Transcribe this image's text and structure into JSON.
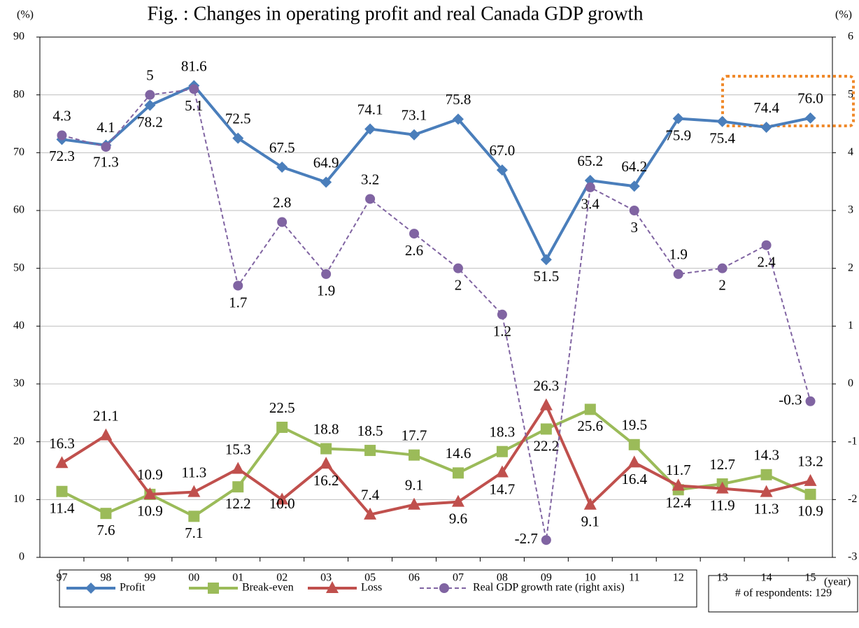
{
  "chart_data": {
    "type": "line",
    "title": "Fig. : Changes in operating profit and real Canada GDP growth",
    "y_label": "(%)",
    "y2_label": "(%)",
    "x_label": "(year)",
    "annotation": "# of respondents: 129",
    "categories": [
      "97",
      "98",
      "99",
      "00",
      "01",
      "02",
      "03",
      "05",
      "06",
      "07",
      "08",
      "09",
      "10",
      "11",
      "12",
      "13",
      "14",
      "15"
    ],
    "series": [
      {
        "name": "Profit",
        "color": "#4a7ebb",
        "marker": "diamond",
        "values": [
          72.3,
          71.3,
          78.2,
          81.6,
          72.5,
          67.5,
          64.9,
          74.1,
          73.1,
          75.8,
          67.0,
          51.5,
          65.2,
          64.2,
          75.9,
          75.4,
          74.4,
          76.0
        ],
        "value_labels": [
          "72.3",
          "71.3",
          "78.2",
          "81.6",
          "72.5",
          "67.5",
          "64.9",
          "74.1",
          "73.1",
          "75.8",
          "67.0",
          "51.5",
          "65.2",
          "64.2",
          "75.9",
          "75.4",
          "74.4",
          "76.0"
        ]
      },
      {
        "name": "Break-even",
        "color": "#9bbb59",
        "marker": "square",
        "values": [
          11.4,
          7.6,
          10.9,
          7.1,
          12.2,
          22.5,
          18.8,
          18.5,
          17.7,
          14.6,
          18.3,
          22.2,
          25.6,
          19.5,
          11.7,
          12.7,
          14.3,
          10.9
        ]
      },
      {
        "name": "Loss",
        "color": "#c0504d",
        "marker": "triangle",
        "values": [
          16.3,
          21.1,
          10.9,
          11.3,
          15.3,
          10.0,
          16.2,
          7.4,
          9.1,
          9.6,
          14.7,
          26.3,
          9.1,
          16.4,
          12.4,
          11.9,
          11.3,
          13.2
        ],
        "value_labels": [
          "16.3",
          "21.1",
          "10.9",
          "11.3",
          "15.3",
          "10.0",
          "16.2",
          "7.4",
          "9.1",
          "9.6",
          "14.7",
          "26.3",
          "9.1",
          "16.4",
          "12.4",
          "11.9",
          "11.3",
          "13.2"
        ]
      },
      {
        "name": "Real GDP growth rate (right axis)",
        "color": "#8064a2",
        "marker": "circle",
        "dashed": true,
        "axis": "y2",
        "values": [
          4.3,
          4.1,
          5.0,
          5.1,
          1.7,
          2.8,
          1.9,
          3.2,
          2.6,
          2.0,
          1.2,
          -2.7,
          3.4,
          3.0,
          1.9,
          2.0,
          2.4,
          -0.3
        ]
      }
    ],
    "ylim": [
      0,
      90
    ],
    "yticks": [
      0,
      10,
      20,
      30,
      40,
      50,
      60,
      70,
      80,
      90
    ],
    "y2lim": [
      -3,
      6
    ],
    "y2ticks": [
      -3,
      -2,
      -1,
      0,
      1,
      2,
      3,
      4,
      5,
      6
    ],
    "grid": true,
    "legend": "bottom"
  }
}
